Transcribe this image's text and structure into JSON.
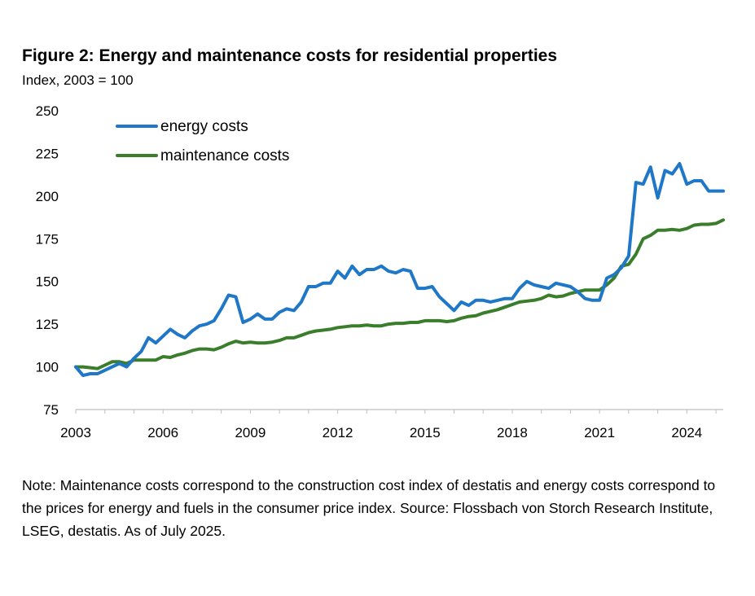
{
  "title": "Figure 2: Energy and maintenance costs for residential properties",
  "subtitle": "Index, 2003 = 100",
  "note": "Note: Maintenance costs correspond to the construction cost index of destatis and energy costs correspond to the prices for energy and fuels in the consumer price index. Source: Flossbach von Storch Research Institute, LSEG, destatis. As of July 2025.",
  "chart_data": {
    "type": "line",
    "title": "Figure 2: Energy and maintenance costs for residential properties",
    "ylabel": "Index, 2003 = 100",
    "xlabel": "",
    "xlim": [
      2003,
      2025.25
    ],
    "ylim": [
      75,
      250
    ],
    "x_ticks": [
      "2003",
      "2006",
      "2009",
      "2012",
      "2015",
      "2018",
      "2021",
      "2024"
    ],
    "y_ticks": [
      "250",
      "225",
      "200",
      "175",
      "150",
      "125",
      "100",
      "75"
    ],
    "grid": false,
    "legend_position": "top-left",
    "series": [
      {
        "name": "energy costs",
        "color": "#1f77c8",
        "points": [
          [
            2003.0,
            100
          ],
          [
            2003.25,
            95
          ],
          [
            2003.5,
            96
          ],
          [
            2003.75,
            96
          ],
          [
            2004.0,
            98
          ],
          [
            2004.25,
            100
          ],
          [
            2004.5,
            102
          ],
          [
            2004.75,
            100
          ],
          [
            2005.0,
            105
          ],
          [
            2005.25,
            109
          ],
          [
            2005.5,
            117
          ],
          [
            2005.75,
            114
          ],
          [
            2006.0,
            118
          ],
          [
            2006.25,
            122
          ],
          [
            2006.5,
            119
          ],
          [
            2006.75,
            117
          ],
          [
            2007.0,
            121
          ],
          [
            2007.25,
            124
          ],
          [
            2007.5,
            125
          ],
          [
            2007.75,
            127
          ],
          [
            2008.0,
            134
          ],
          [
            2008.25,
            142
          ],
          [
            2008.5,
            141
          ],
          [
            2008.75,
            126
          ],
          [
            2009.0,
            128
          ],
          [
            2009.25,
            131
          ],
          [
            2009.5,
            128
          ],
          [
            2009.75,
            128
          ],
          [
            2010.0,
            132
          ],
          [
            2010.25,
            134
          ],
          [
            2010.5,
            133
          ],
          [
            2010.75,
            138
          ],
          [
            2011.0,
            147
          ],
          [
            2011.25,
            147
          ],
          [
            2011.5,
            149
          ],
          [
            2011.75,
            149
          ],
          [
            2012.0,
            156
          ],
          [
            2012.25,
            152
          ],
          [
            2012.5,
            159
          ],
          [
            2012.75,
            154
          ],
          [
            2013.0,
            157
          ],
          [
            2013.25,
            157
          ],
          [
            2013.5,
            159
          ],
          [
            2013.75,
            156
          ],
          [
            2014.0,
            155
          ],
          [
            2014.25,
            157
          ],
          [
            2014.5,
            156
          ],
          [
            2014.75,
            146
          ],
          [
            2015.0,
            146
          ],
          [
            2015.25,
            147
          ],
          [
            2015.5,
            141
          ],
          [
            2015.75,
            137
          ],
          [
            2016.0,
            133
          ],
          [
            2016.25,
            138
          ],
          [
            2016.5,
            136
          ],
          [
            2016.75,
            139
          ],
          [
            2017.0,
            139
          ],
          [
            2017.25,
            138
          ],
          [
            2017.5,
            139
          ],
          [
            2017.75,
            140
          ],
          [
            2018.0,
            140
          ],
          [
            2018.25,
            146
          ],
          [
            2018.5,
            150
          ],
          [
            2018.75,
            148
          ],
          [
            2019.0,
            147
          ],
          [
            2019.25,
            146
          ],
          [
            2019.5,
            149
          ],
          [
            2019.75,
            148
          ],
          [
            2020.0,
            147
          ],
          [
            2020.25,
            144
          ],
          [
            2020.5,
            140
          ],
          [
            2020.75,
            139
          ],
          [
            2021.0,
            139
          ],
          [
            2021.25,
            152
          ],
          [
            2021.5,
            154
          ],
          [
            2021.75,
            158
          ],
          [
            2022.0,
            165
          ],
          [
            2022.25,
            208
          ],
          [
            2022.5,
            207
          ],
          [
            2022.75,
            217
          ],
          [
            2023.0,
            199
          ],
          [
            2023.25,
            215
          ],
          [
            2023.5,
            213
          ],
          [
            2023.75,
            219
          ],
          [
            2024.0,
            207
          ],
          [
            2024.25,
            209
          ],
          [
            2024.5,
            209
          ],
          [
            2024.75,
            203
          ],
          [
            2025.0,
            203
          ],
          [
            2025.25,
            203
          ]
        ]
      },
      {
        "name": "maintenance  costs",
        "color": "#3a7d2b",
        "points": [
          [
            2003.0,
            100
          ],
          [
            2003.25,
            100
          ],
          [
            2003.5,
            99.5
          ],
          [
            2003.75,
            99
          ],
          [
            2004.0,
            101
          ],
          [
            2004.25,
            103
          ],
          [
            2004.5,
            103
          ],
          [
            2004.75,
            102
          ],
          [
            2005.0,
            104
          ],
          [
            2005.25,
            104
          ],
          [
            2005.5,
            104
          ],
          [
            2005.75,
            104
          ],
          [
            2006.0,
            106
          ],
          [
            2006.25,
            105.5
          ],
          [
            2006.5,
            107
          ],
          [
            2006.75,
            108
          ],
          [
            2007.0,
            109.5
          ],
          [
            2007.25,
            110.5
          ],
          [
            2007.5,
            110.5
          ],
          [
            2007.75,
            110
          ],
          [
            2008.0,
            111.5
          ],
          [
            2008.25,
            113.5
          ],
          [
            2008.5,
            115
          ],
          [
            2008.75,
            114
          ],
          [
            2009.0,
            114.5
          ],
          [
            2009.25,
            114
          ],
          [
            2009.5,
            114
          ],
          [
            2009.75,
            114.5
          ],
          [
            2010.0,
            115.5
          ],
          [
            2010.25,
            117
          ],
          [
            2010.5,
            117
          ],
          [
            2010.75,
            118.5
          ],
          [
            2011.0,
            120
          ],
          [
            2011.25,
            121
          ],
          [
            2011.5,
            121.5
          ],
          [
            2011.75,
            122
          ],
          [
            2012.0,
            123
          ],
          [
            2012.25,
            123.5
          ],
          [
            2012.5,
            124
          ],
          [
            2012.75,
            124
          ],
          [
            2013.0,
            124.5
          ],
          [
            2013.25,
            124
          ],
          [
            2013.5,
            124
          ],
          [
            2013.75,
            125
          ],
          [
            2014.0,
            125.5
          ],
          [
            2014.25,
            125.5
          ],
          [
            2014.5,
            126
          ],
          [
            2014.75,
            126
          ],
          [
            2015.0,
            127
          ],
          [
            2015.25,
            127
          ],
          [
            2015.5,
            127
          ],
          [
            2015.75,
            126.5
          ],
          [
            2016.0,
            127
          ],
          [
            2016.25,
            128.5
          ],
          [
            2016.5,
            129.5
          ],
          [
            2016.75,
            130
          ],
          [
            2017.0,
            131.5
          ],
          [
            2017.25,
            132.5
          ],
          [
            2017.5,
            133.5
          ],
          [
            2017.75,
            135
          ],
          [
            2018.0,
            136.5
          ],
          [
            2018.25,
            138
          ],
          [
            2018.5,
            138.5
          ],
          [
            2018.75,
            139
          ],
          [
            2019.0,
            140
          ],
          [
            2019.25,
            142
          ],
          [
            2019.5,
            141
          ],
          [
            2019.75,
            141.5
          ],
          [
            2020.0,
            143
          ],
          [
            2020.25,
            144
          ],
          [
            2020.5,
            145
          ],
          [
            2020.75,
            145
          ],
          [
            2021.0,
            145
          ],
          [
            2021.25,
            148
          ],
          [
            2021.5,
            152
          ],
          [
            2021.75,
            159
          ],
          [
            2022.0,
            160
          ],
          [
            2022.25,
            166
          ],
          [
            2022.5,
            175
          ],
          [
            2022.75,
            177
          ],
          [
            2023.0,
            180
          ],
          [
            2023.25,
            180
          ],
          [
            2023.5,
            180.5
          ],
          [
            2023.75,
            180
          ],
          [
            2024.0,
            181
          ],
          [
            2024.25,
            183
          ],
          [
            2024.5,
            183.5
          ],
          [
            2024.75,
            183.5
          ],
          [
            2025.0,
            184
          ],
          [
            2025.25,
            186
          ]
        ]
      }
    ]
  }
}
